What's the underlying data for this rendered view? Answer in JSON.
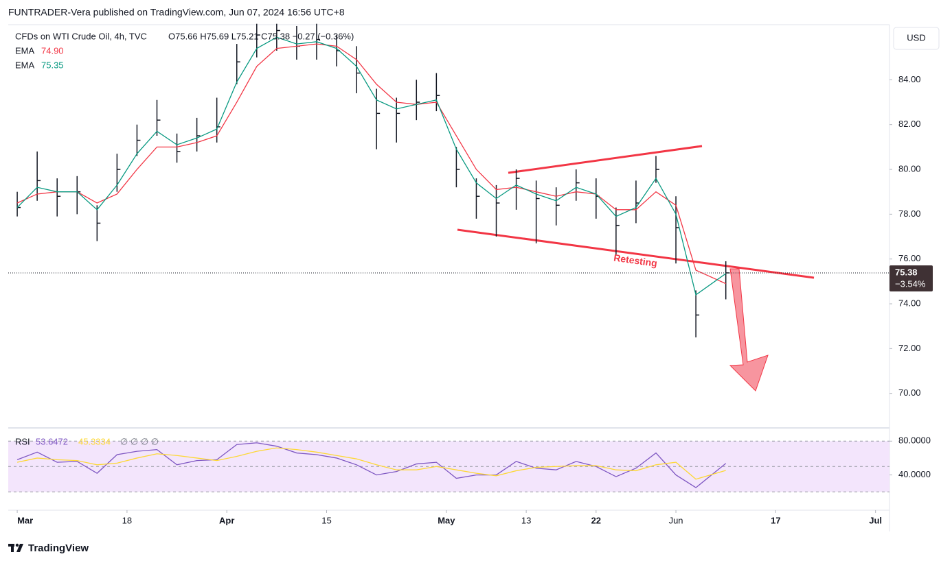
{
  "header": "FUNTRADER-Vera published on TradingView.com, Jun 07, 2024 16:56 UTC+8",
  "footer_brand": "TradingView",
  "chart_data": [
    {
      "type": "ohlc",
      "title": "CFDs on WTI Crude Oil, 4h, TVC",
      "ohlc_label": "O75.66 H75.69 L75.21 C75.38 −0.27 (−0.36%)",
      "currency": "USD",
      "x": [
        0,
        2,
        4,
        6,
        8,
        10,
        12,
        14,
        16,
        18,
        20,
        22,
        24,
        26,
        28,
        30,
        32,
        34,
        36,
        38,
        40,
        42,
        44,
        46,
        48,
        50,
        52,
        54,
        56,
        58,
        60,
        62,
        64,
        66,
        68,
        71
      ],
      "xlim": [
        -0.9,
        87.4
      ],
      "xticks": [
        {
          "value": 0,
          "label": "Mar"
        },
        {
          "value": 11,
          "label": "18"
        },
        {
          "value": 21,
          "label": "Apr"
        },
        {
          "value": 31,
          "label": "15"
        },
        {
          "value": 43,
          "label": "May"
        },
        {
          "value": 51,
          "label": "13"
        },
        {
          "value": 58,
          "label": "22"
        },
        {
          "value": 66,
          "label": "Jun"
        },
        {
          "value": 76,
          "label": "17"
        },
        {
          "value": 86,
          "label": "Jul"
        }
      ],
      "ylim": [
        68.46,
        86.46
      ],
      "yticks": [
        {
          "value": 70,
          "label": "70.00"
        },
        {
          "value": 72,
          "label": "72.00"
        },
        {
          "value": 74,
          "label": "74.00"
        },
        {
          "value": 76,
          "label": "76.00"
        },
        {
          "value": 78,
          "label": "78.00"
        },
        {
          "value": 80,
          "label": "80.00"
        },
        {
          "value": 82,
          "label": "82.00"
        },
        {
          "value": 84,
          "label": "84.00"
        }
      ],
      "high": [
        79.0,
        80.8,
        79.6,
        79.7,
        78.4,
        80.7,
        82.0,
        83.1,
        81.6,
        82.3,
        83.2,
        85.6,
        86.5,
        86.5,
        86.4,
        86.5,
        86.0,
        85.5,
        83.6,
        83.2,
        84.0,
        84.3,
        81.0,
        79.6,
        79.3,
        80.0,
        79.5,
        79.2,
        80.0,
        79.6,
        78.3,
        79.5,
        80.6,
        78.8,
        74.6,
        75.9
      ],
      "low": [
        77.9,
        78.6,
        77.9,
        78.0,
        76.8,
        79.0,
        80.6,
        81.5,
        80.3,
        80.8,
        81.2,
        83.8,
        85.0,
        85.3,
        84.9,
        84.9,
        84.6,
        83.4,
        80.9,
        81.2,
        82.2,
        82.6,
        79.2,
        77.8,
        77.0,
        78.2,
        76.7,
        77.5,
        78.6,
        77.8,
        76.2,
        77.6,
        79.4,
        75.8,
        72.5,
        74.2
      ],
      "close": [
        78.3,
        79.5,
        78.8,
        79.0,
        77.6,
        80.0,
        81.3,
        82.2,
        80.8,
        81.5,
        81.9,
        84.8,
        86.0,
        86.2,
        85.5,
        85.8,
        85.3,
        84.3,
        82.5,
        82.5,
        83.0,
        83.3,
        80.0,
        78.8,
        78.5,
        79.6,
        78.7,
        78.4,
        79.4,
        78.8,
        77.5,
        78.5,
        80.0,
        77.4,
        73.5,
        75.38
      ],
      "bar_color": "#131722",
      "series": [
        {
          "name": "EMA",
          "color": "#f23645",
          "last_value_label": "74.90",
          "values": [
            78.5,
            78.9,
            79.0,
            79.0,
            78.5,
            78.9,
            80.0,
            81.0,
            81.0,
            81.2,
            81.5,
            83.0,
            84.6,
            85.4,
            85.5,
            85.6,
            85.5,
            84.9,
            83.8,
            83.0,
            82.9,
            83.0,
            81.5,
            80.0,
            79.1,
            79.2,
            79.0,
            78.8,
            79.0,
            78.9,
            78.2,
            78.2,
            79.0,
            78.4,
            75.5,
            74.9
          ]
        },
        {
          "name": "EMA",
          "color": "#089981",
          "last_value_label": "75.35",
          "values": [
            78.3,
            79.2,
            79.0,
            79.0,
            78.2,
            79.3,
            80.7,
            81.7,
            81.1,
            81.4,
            81.8,
            83.9,
            85.4,
            85.9,
            85.6,
            85.7,
            85.4,
            84.6,
            83.1,
            82.7,
            82.9,
            83.1,
            80.9,
            79.4,
            78.7,
            79.3,
            78.9,
            78.6,
            79.2,
            78.9,
            77.9,
            78.3,
            79.6,
            78.0,
            74.4,
            75.35
          ]
        }
      ],
      "last_change_label": "−3.54%",
      "annotation": "Retesting"
    },
    {
      "type": "line",
      "title": "RSI",
      "status_icons": "∅ ∅ ∅ ∅",
      "ylim": [
        -1.7,
        95.65
      ],
      "yticks": [
        {
          "value": 80,
          "label": "80.0000"
        },
        {
          "value": 40,
          "label": "40.0000"
        }
      ],
      "band": [
        20,
        80
      ],
      "midline": 50,
      "band_color": "#f3e5fc",
      "series": [
        {
          "color": "#7e57c2",
          "values": [
            58,
            67,
            55,
            56,
            42,
            64,
            68,
            70,
            52,
            57,
            58,
            76,
            78,
            74,
            66,
            64,
            60,
            52,
            40,
            44,
            53,
            55,
            36,
            40,
            40,
            56,
            48,
            46,
            56,
            50,
            38,
            48,
            66,
            40,
            25,
            53.6472
          ]
        },
        {
          "color": "#fdd835",
          "values": [
            55,
            60,
            58,
            57,
            52,
            54,
            60,
            65,
            63,
            60,
            57,
            62,
            68,
            72,
            70,
            67,
            63,
            59,
            52,
            46,
            46,
            50,
            46,
            42,
            39,
            45,
            49,
            50,
            51,
            51,
            46,
            45,
            52,
            55,
            35,
            45.3334
          ]
        }
      ]
    }
  ]
}
